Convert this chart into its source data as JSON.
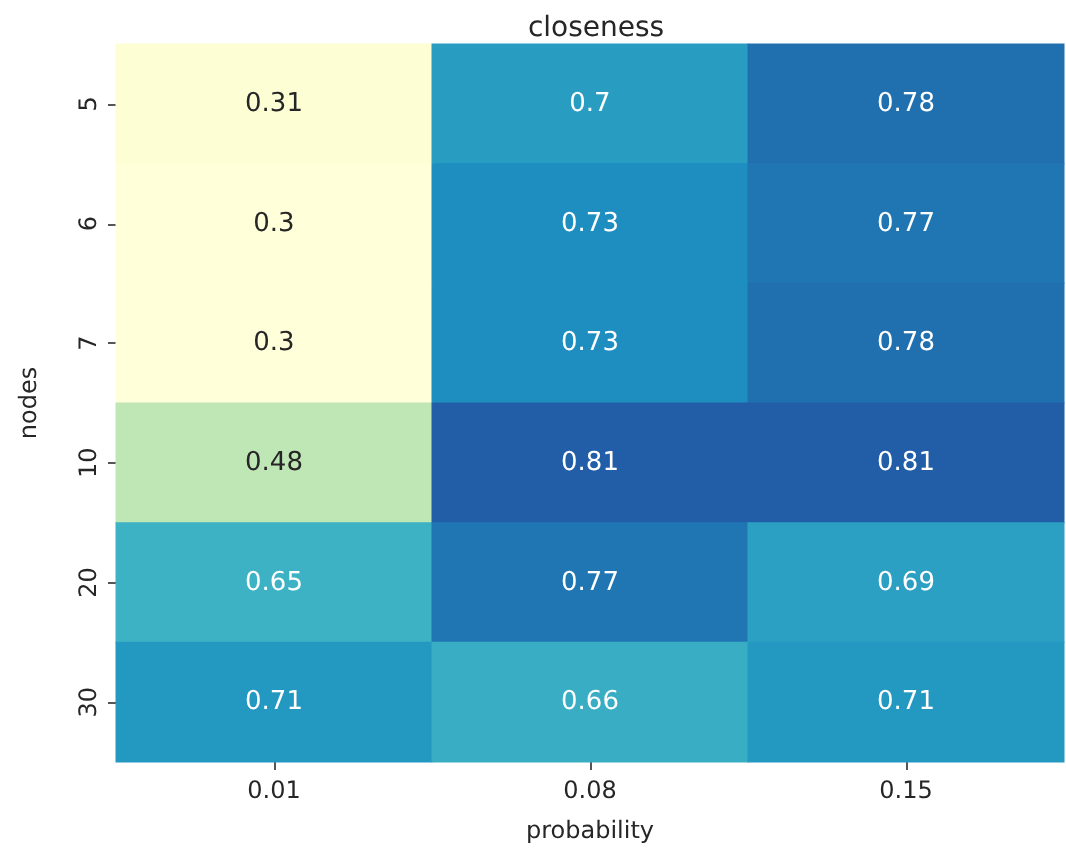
{
  "chart_data": {
    "type": "heatmap",
    "title": "closeness",
    "xlabel": "probability",
    "ylabel": "nodes",
    "categories": [
      "0.01",
      "0.08",
      "0.15"
    ],
    "y_categories": [
      "5",
      "6",
      "7",
      "10",
      "20",
      "30"
    ],
    "cells": [
      [
        0.31,
        0.7,
        0.78
      ],
      [
        0.3,
        0.73,
        0.77
      ],
      [
        0.3,
        0.73,
        0.78
      ],
      [
        0.48,
        0.81,
        0.81
      ],
      [
        0.65,
        0.77,
        0.69
      ],
      [
        0.71,
        0.66,
        0.71
      ]
    ],
    "data_labels": true
  }
}
